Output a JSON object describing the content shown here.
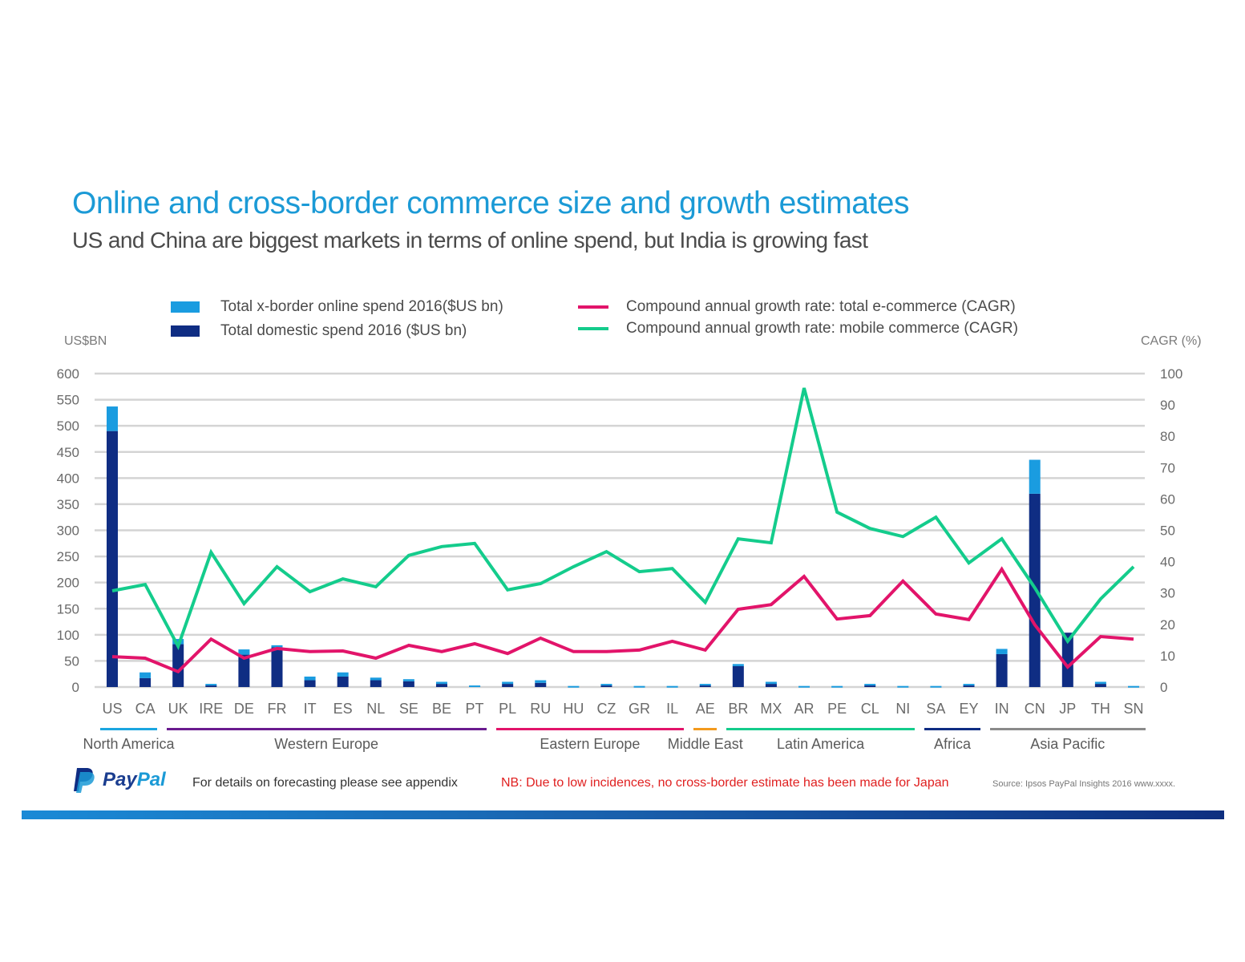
{
  "header": {
    "title": "Online and cross-border commerce size and growth estimates",
    "subtitle": "US and China are biggest markets in terms of online spend, but India is growing fast"
  },
  "colors": {
    "title": "#1b9ad6",
    "xborder": "#1a9ce0",
    "domestic": "#0f2d83",
    "cagr_total": "#e2146a",
    "cagr_mobile": "#14cc8c",
    "grid": "#d4d4d4",
    "note": "#e02020"
  },
  "legend": {
    "xborder": "Total x-border online spend 2016($US bn)",
    "domestic": "Total domestic  spend 2016 ($US bn)",
    "cagr_total": "Compound annual growth rate: total e-commerce (CAGR)",
    "cagr_mobile": "Compound annual growth rate: mobile commerce (CAGR)"
  },
  "chart_data": {
    "type": "bar",
    "subtype": "stacked bar + dual-axis line",
    "title": "Online and cross-border commerce size and growth estimates",
    "ylabel": "US$BN",
    "y2label": "CAGR (%)",
    "ylim": [
      0,
      600
    ],
    "y2lim": [
      0,
      100
    ],
    "yticks": [
      0,
      50,
      100,
      150,
      200,
      250,
      300,
      350,
      400,
      450,
      500,
      550,
      600
    ],
    "y2ticks": [
      0,
      10,
      20,
      30,
      40,
      50,
      60,
      70,
      80,
      90,
      100
    ],
    "grid": true,
    "legend_position": "top",
    "categories": [
      "US",
      "CA",
      "UK",
      "IRE",
      "DE",
      "FR",
      "IT",
      "ES",
      "NL",
      "SE",
      "BE",
      "PT",
      "PL",
      "RU",
      "HU",
      "CZ",
      "GR",
      "IL",
      "AE",
      "BR",
      "MX",
      "AR",
      "PE",
      "CL",
      "NI",
      "SA",
      "EY",
      "IN",
      "CN",
      "JP",
      "TH",
      "SN"
    ],
    "series": [
      {
        "name": "Total domestic  spend 2016 ($US bn)",
        "axis": "left",
        "type": "bar",
        "stack": "spend",
        "values": [
          490,
          17,
          82,
          3,
          62,
          76,
          13,
          20,
          13,
          11,
          6,
          1,
          6,
          8,
          0,
          3,
          0,
          0,
          3,
          40,
          6,
          0,
          0,
          3,
          0,
          0,
          3,
          63,
          370,
          104,
          6,
          0
        ]
      },
      {
        "name": "Total x-border online spend 2016($US bn)",
        "axis": "left",
        "type": "bar",
        "stack": "spend",
        "values": [
          47,
          11,
          10,
          3,
          10,
          4,
          7,
          8,
          5,
          4,
          4,
          2,
          4,
          5,
          2,
          3,
          2,
          2,
          3,
          4,
          4,
          2,
          2,
          3,
          2,
          2,
          3,
          10,
          65,
          0,
          4,
          2
        ]
      },
      {
        "name": "Compound annual growth rate: total e-commerce (CAGR)",
        "axis": "right",
        "type": "line",
        "values": [
          9.7,
          9.2,
          4.9,
          15.3,
          9.2,
          12.3,
          11.3,
          11.5,
          9.2,
          13.3,
          11.3,
          13.8,
          10.7,
          15.6,
          11.3,
          11.3,
          11.8,
          14.6,
          11.8,
          24.8,
          26.3,
          35.3,
          21.7,
          22.8,
          33.8,
          23.3,
          21.5,
          37.6,
          19.9,
          6.4,
          16.1,
          15.3
        ]
      },
      {
        "name": "Compound annual growth rate: mobile commerce (CAGR)",
        "axis": "right",
        "type": "line",
        "values": [
          30.7,
          32.7,
          13.0,
          43.0,
          26.6,
          38.4,
          30.4,
          34.5,
          32.0,
          42.0,
          44.8,
          45.8,
          31.0,
          33.0,
          38.4,
          43.2,
          36.8,
          37.8,
          27.0,
          47.3,
          46.0,
          95.4,
          55.8,
          50.6,
          48.0,
          54.2,
          39.6,
          47.3,
          31.7,
          14.6,
          28.1,
          38.4
        ]
      }
    ],
    "regions": [
      {
        "name": "North America",
        "from": "US",
        "to": "CA",
        "color": "#1ba6e0"
      },
      {
        "name": "Western Europe",
        "from": "UK",
        "to": "PT",
        "color": "#6a1b8f"
      },
      {
        "name": "Eastern Europe",
        "from": "PL",
        "to": "IL",
        "color": "#e2146a"
      },
      {
        "name": "Middle East",
        "from": "AE",
        "to": "AE",
        "color": "#f39a1e"
      },
      {
        "name": "Latin America",
        "from": "BR",
        "to": "NI",
        "color": "#14cc8c"
      },
      {
        "name": "Africa",
        "from": "SA",
        "to": "EY",
        "color": "#0f2d83"
      },
      {
        "name": "Asia Pacific",
        "from": "IN",
        "to": "SN",
        "color": "#8a8a8a"
      }
    ]
  },
  "footer": {
    "logo_text_1": "Pay",
    "logo_text_2": "Pal",
    "appendix_note": "For details on forecasting please see appendix",
    "japan_note": "NB: Due to low incidences, no cross-border estimate has been made for Japan",
    "source": "Source:  Ipsos PayPal   Insights 2016  www.xxxx."
  }
}
